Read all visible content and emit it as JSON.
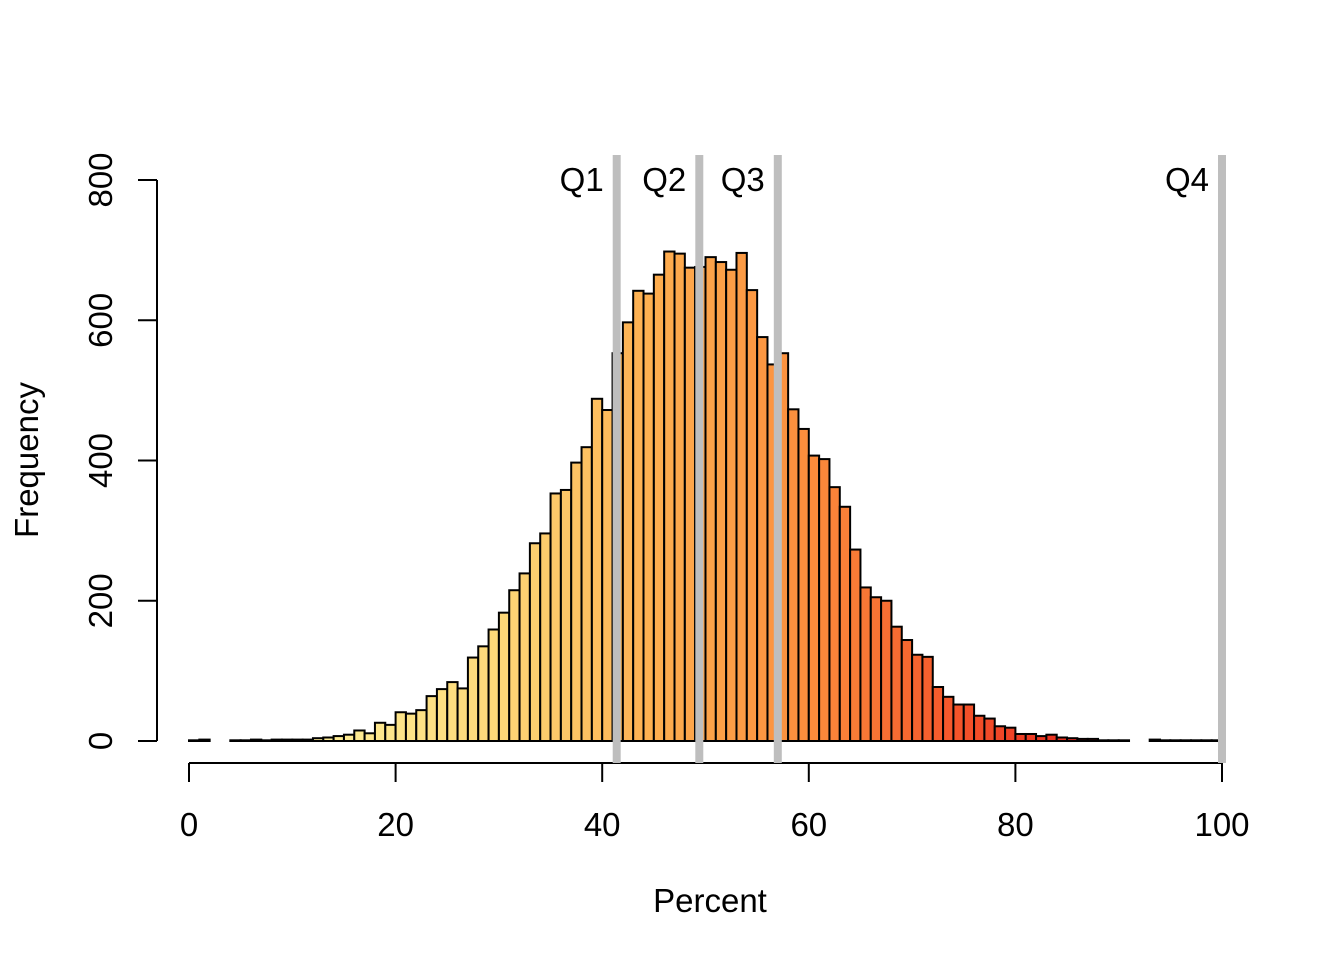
{
  "chart_data": {
    "type": "bar",
    "subtype": "histogram",
    "title": "",
    "xlabel": "Percent",
    "ylabel": "Frequency",
    "xlim": [
      0,
      100
    ],
    "ylim": [
      0,
      800
    ],
    "x_ticks": [
      "0",
      "20",
      "40",
      "60",
      "80",
      "100"
    ],
    "x_tick_values": [
      0,
      20,
      40,
      60,
      80,
      100
    ],
    "y_ticks": [
      "0",
      "200",
      "400",
      "600",
      "800"
    ],
    "y_tick_values": [
      0,
      200,
      400,
      600,
      800
    ],
    "grid": false,
    "legend": null,
    "bin_width": 1,
    "bins_start": 0,
    "values": [
      1,
      2,
      0,
      0,
      1,
      1,
      2,
      1,
      2,
      2,
      2,
      2,
      4,
      5,
      7,
      9,
      15,
      11,
      26,
      23,
      41,
      39,
      44,
      64,
      74,
      84,
      75,
      119,
      135,
      159,
      183,
      215,
      239,
      282,
      296,
      353,
      358,
      397,
      419,
      488,
      472,
      553,
      597,
      642,
      638,
      665,
      698,
      695,
      675,
      676,
      690,
      683,
      672,
      696,
      643,
      576,
      537,
      553,
      473,
      445,
      407,
      402,
      362,
      334,
      273,
      219,
      205,
      200,
      163,
      144,
      123,
      120,
      77,
      63,
      52,
      52,
      36,
      32,
      21,
      19,
      10,
      10,
      7,
      9,
      5,
      4,
      3,
      3,
      1,
      1,
      1,
      0,
      0,
      2,
      1,
      1,
      1,
      1,
      1,
      1
    ],
    "bar_stroke_color": "#000000",
    "bar_color_stops": [
      {
        "t": 0.0,
        "c": "#FFF6AE"
      },
      {
        "t": 0.15,
        "c": "#FDEA92"
      },
      {
        "t": 0.3,
        "c": "#FDD878"
      },
      {
        "t": 0.45,
        "c": "#FDAE50"
      },
      {
        "t": 0.6,
        "c": "#FB8D3C"
      },
      {
        "t": 0.75,
        "c": "#F4532A"
      },
      {
        "t": 0.9,
        "c": "#E5201D"
      },
      {
        "t": 1.0,
        "c": "#E2191C"
      }
    ],
    "annotations": [
      {
        "label": "Q1",
        "x": 41.4
      },
      {
        "label": "Q2",
        "x": 49.4
      },
      {
        "label": "Q3",
        "x": 57.0
      },
      {
        "label": "Q4",
        "x": 100
      }
    ],
    "annotation_line_color": "#BEBEBE",
    "axis_color": "#000000",
    "text_color": "#000000"
  }
}
